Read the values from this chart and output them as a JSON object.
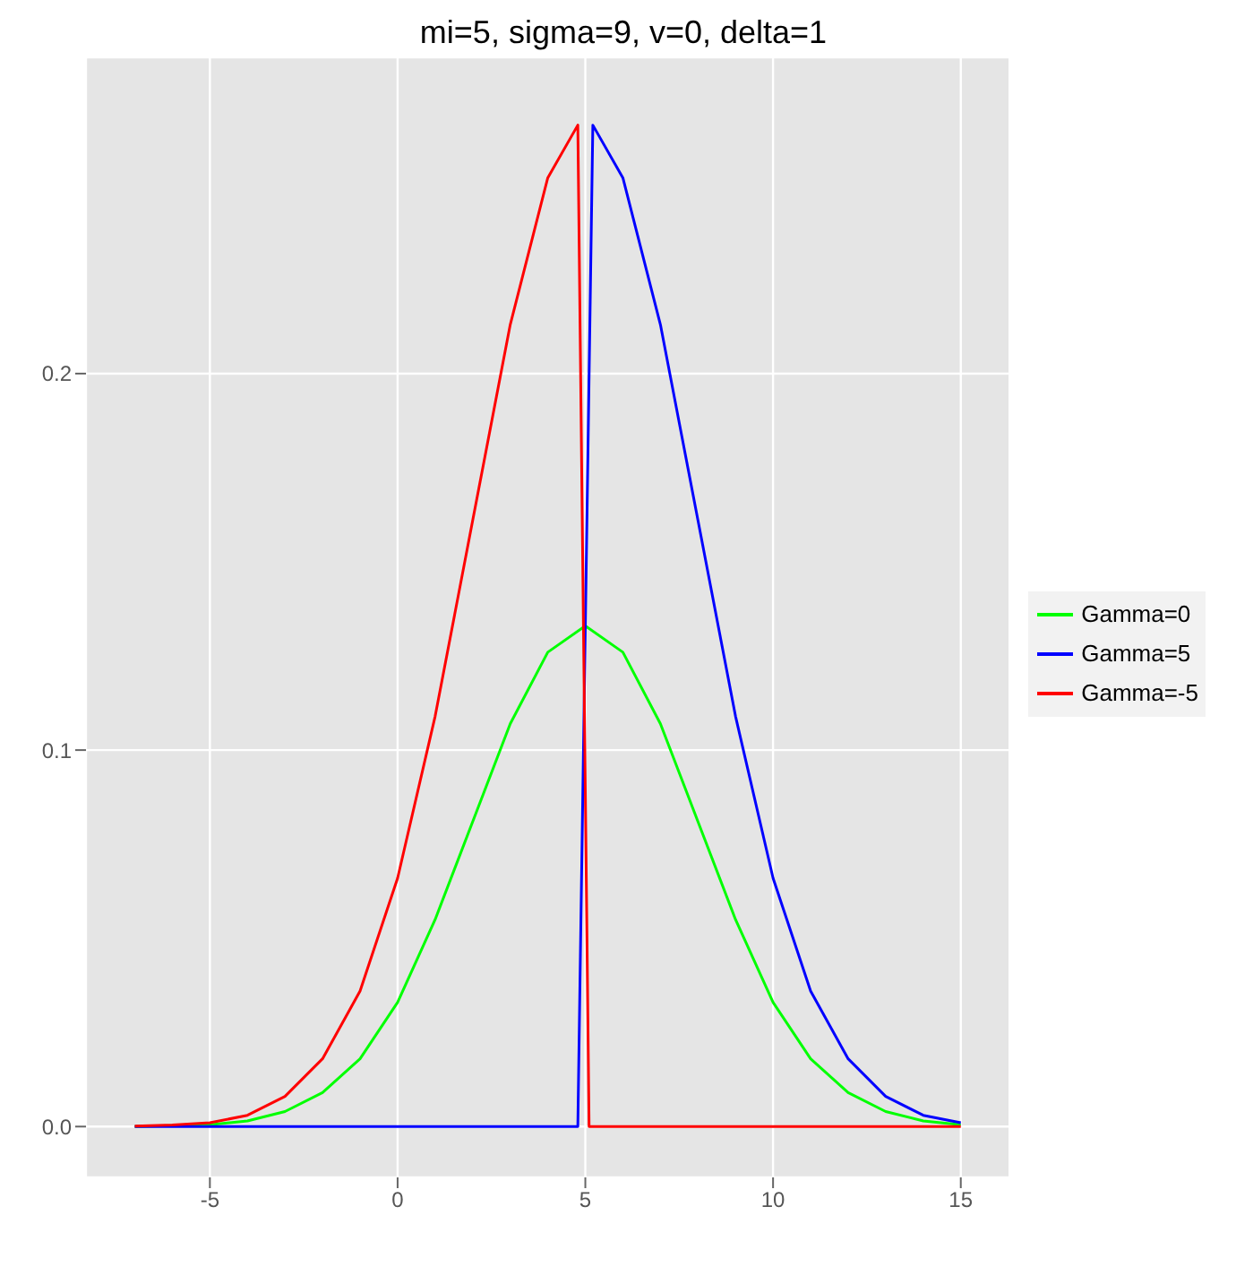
{
  "chart_data": {
    "type": "line",
    "title": "mi=5, sigma=9, v=0, delta=1",
    "series": [
      {
        "name": "Gamma=0",
        "color": "#00ff00",
        "x": [
          -7,
          -5,
          -4,
          -3,
          -2,
          -1,
          0,
          1,
          2,
          3,
          4,
          5,
          6,
          7,
          8,
          9,
          10,
          11,
          12,
          13,
          14,
          15
        ],
        "values": [
          0,
          0.0005,
          0.0015,
          0.004,
          0.009,
          0.018,
          0.033,
          0.055,
          0.081,
          0.107,
          0.126,
          0.133,
          0.126,
          0.107,
          0.081,
          0.055,
          0.033,
          0.018,
          0.009,
          0.004,
          0.0015,
          0.0005
        ]
      },
      {
        "name": "Gamma=5",
        "color": "#0000ff",
        "x": [
          -7,
          -5,
          0,
          4,
          4.8,
          5.2,
          6,
          7,
          8,
          9,
          10,
          11,
          12,
          13,
          14,
          15
        ],
        "values": [
          0,
          0,
          0,
          0,
          0,
          0.266,
          0.252,
          0.213,
          0.161,
          0.109,
          0.066,
          0.036,
          0.018,
          0.008,
          0.003,
          0.001
        ]
      },
      {
        "name": "Gamma=-5",
        "color": "#ff0000",
        "x": [
          -7,
          -6,
          -5,
          -4,
          -3,
          -2,
          -1,
          0,
          1,
          2,
          3,
          4,
          4.8,
          5.1,
          6,
          10,
          15
        ],
        "values": [
          0.0001,
          0.0004,
          0.001,
          0.003,
          0.008,
          0.018,
          0.036,
          0.066,
          0.109,
          0.161,
          0.213,
          0.252,
          0.266,
          0,
          0,
          0,
          0
        ]
      }
    ],
    "xlim": [
      -8.3,
      16.3
    ],
    "ylim": [
      -0.0135,
      0.284
    ],
    "xticks": [
      -5,
      0,
      5,
      10,
      15
    ],
    "yticks": [
      {
        "value": 0,
        "label": "0.0"
      },
      {
        "value": 0.1,
        "label": "0.1"
      },
      {
        "value": 0.2,
        "label": "0.2"
      }
    ],
    "grid": true,
    "legend": "right",
    "marker": "none",
    "line_style": "solid"
  }
}
